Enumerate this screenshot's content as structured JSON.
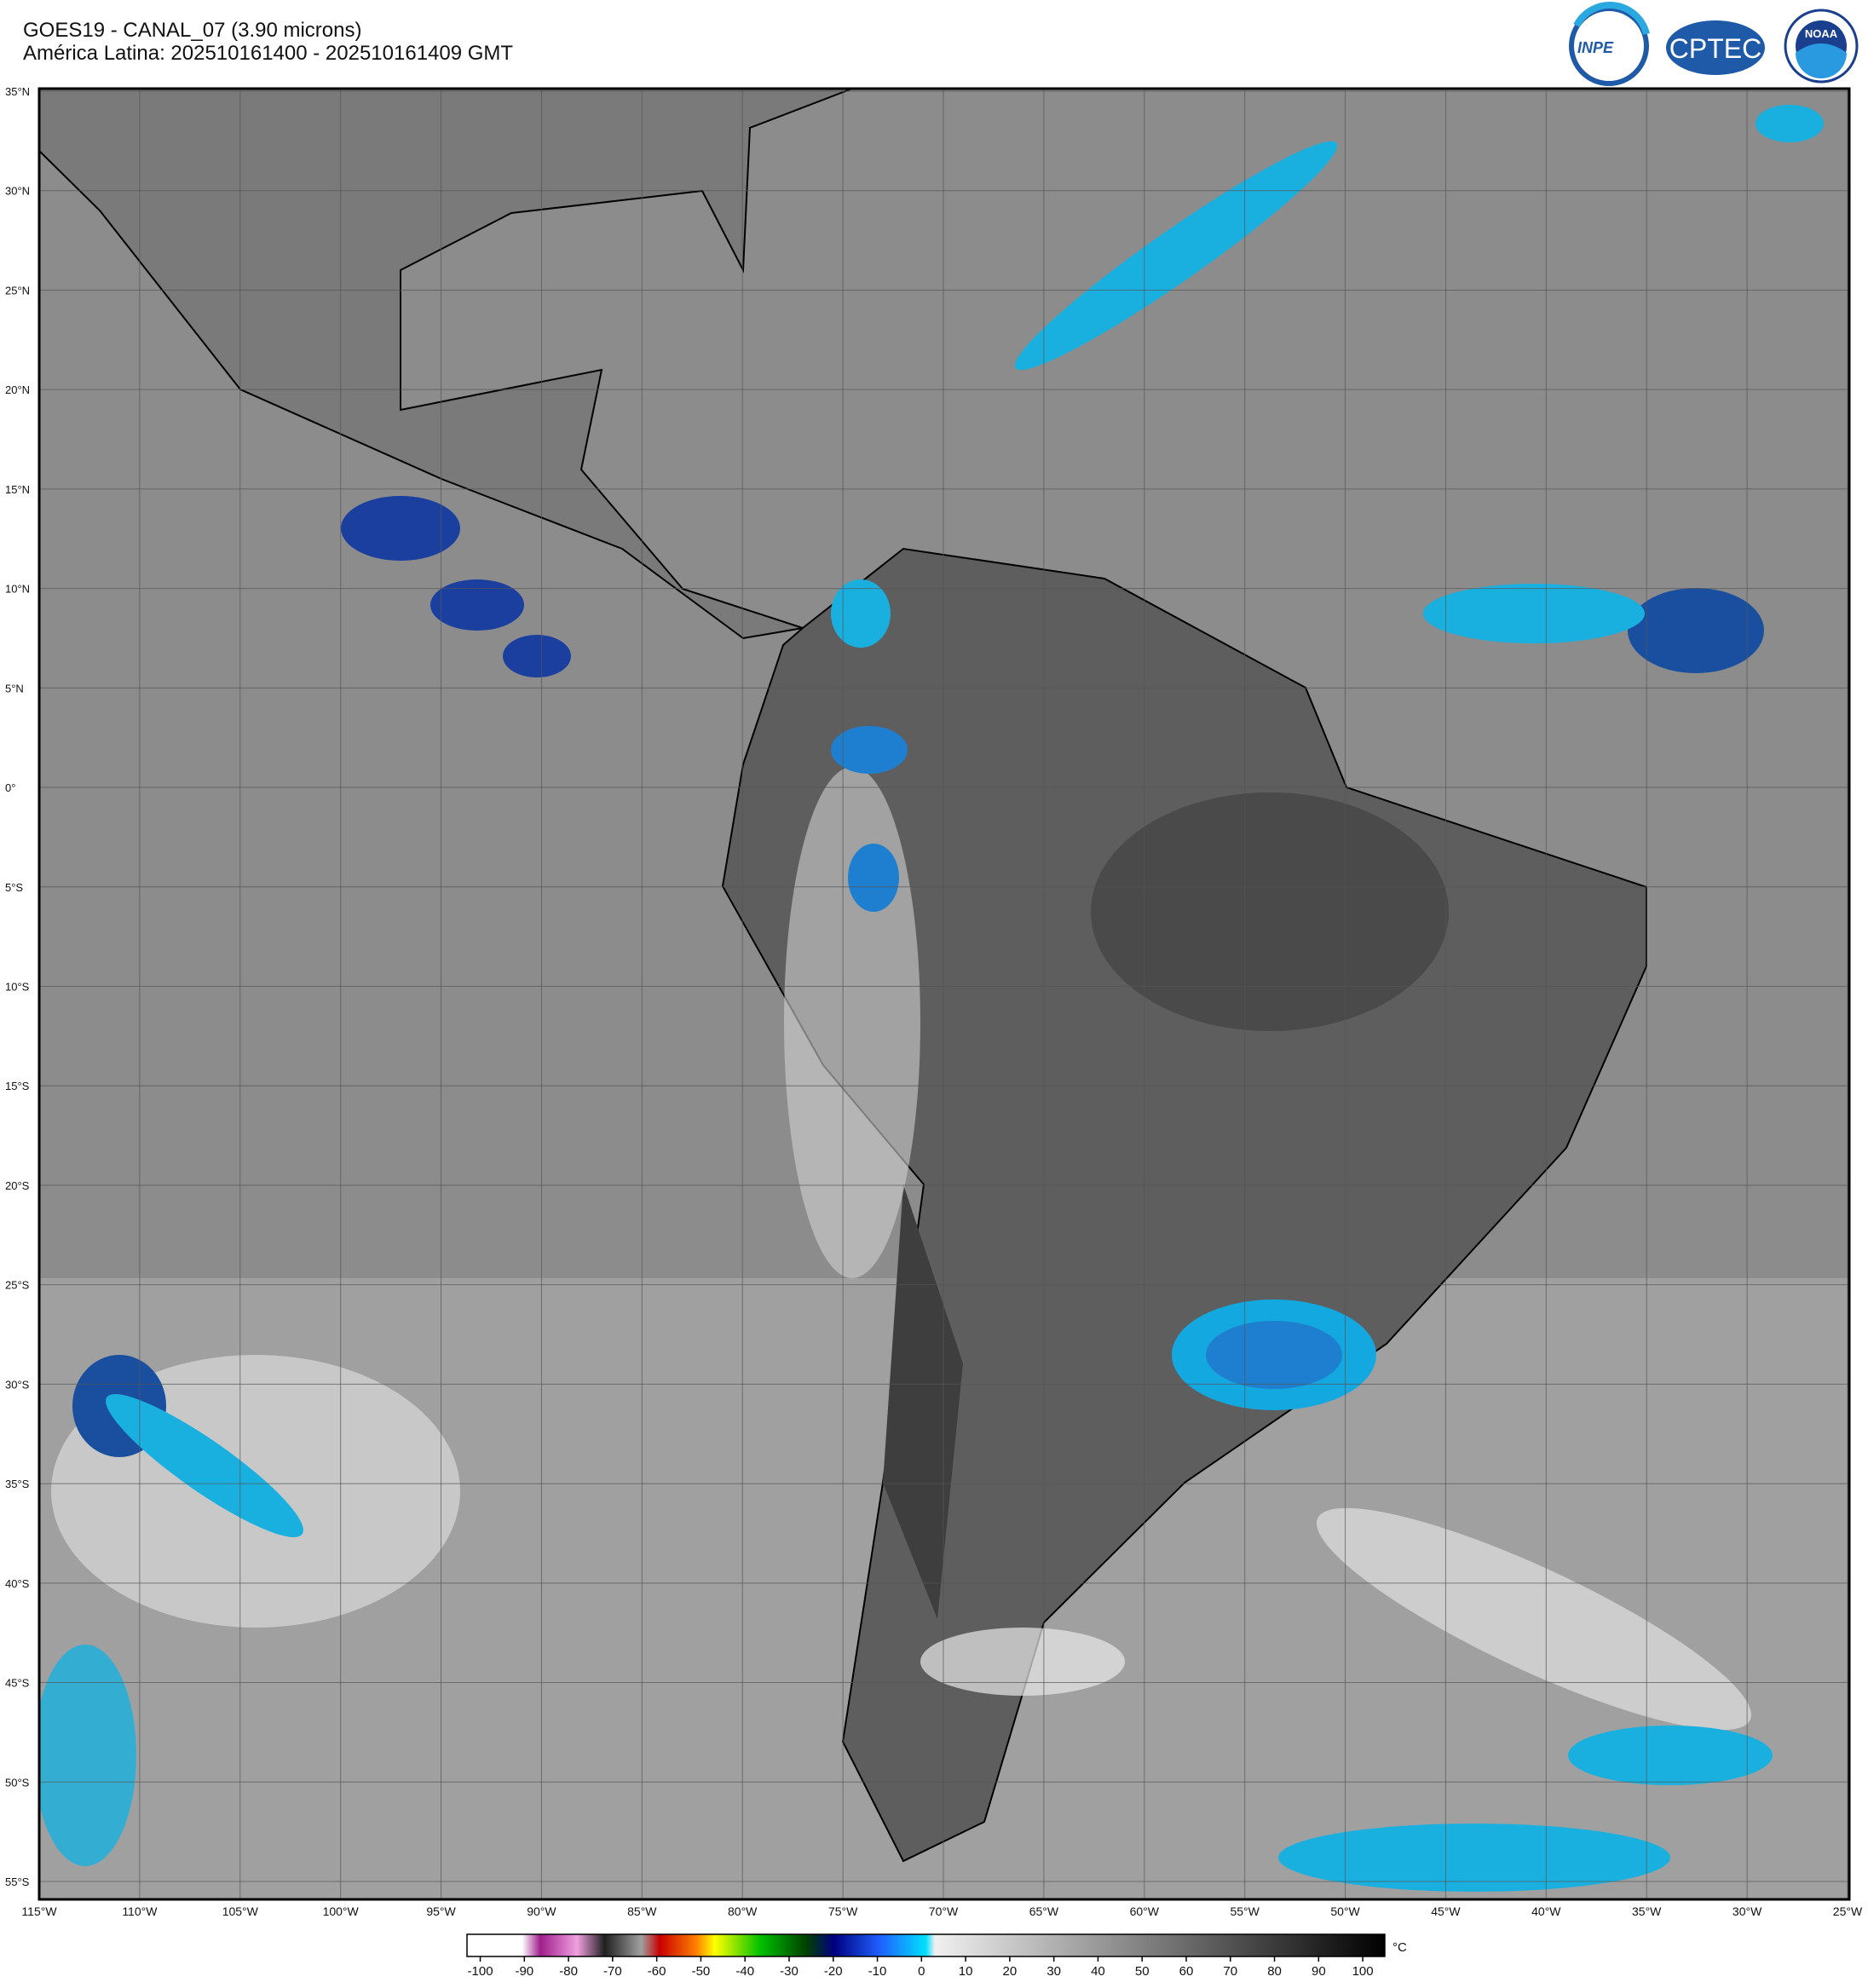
{
  "header": {
    "title": "GOES19 - CANAL_07 (3.90 microns)",
    "subtitle": "América Latina: 202510161400 - 202510161409 GMT"
  },
  "logos": {
    "inpe": "INPE",
    "cptec": "CPTEC",
    "noaa": "NOAA"
  },
  "map": {
    "lat_labels": [
      "35°N",
      "30°N",
      "25°N",
      "20°N",
      "15°N",
      "10°N",
      "5°N",
      "0°",
      "5°S",
      "10°S",
      "15°S",
      "20°S",
      "25°S",
      "30°S",
      "35°S",
      "40°S",
      "45°S",
      "50°S",
      "55°S"
    ],
    "lon_labels": [
      "115°W",
      "110°W",
      "105°W",
      "100°W",
      "95°W",
      "90°W",
      "85°W",
      "80°W",
      "75°W",
      "70°W",
      "65°W",
      "60°W",
      "55°W",
      "50°W",
      "45°W",
      "40°W",
      "35°W",
      "30°W",
      "25°W"
    ]
  },
  "colorbar": {
    "unit": "°C",
    "lim": [
      -103,
      105
    ],
    "ticks": [
      -100,
      -90,
      -80,
      -70,
      -60,
      -50,
      -40,
      -30,
      -20,
      -10,
      0,
      10,
      20,
      30,
      40,
      50,
      60,
      70,
      80,
      90,
      100
    ]
  }
}
